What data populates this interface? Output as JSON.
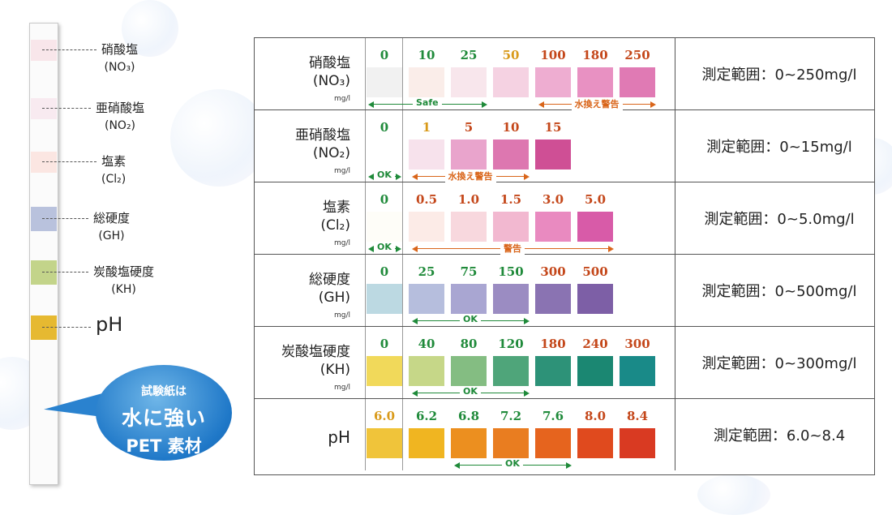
{
  "strip": {
    "pads": [
      {
        "label": "硝酸塩",
        "sub": "(NO₃)",
        "color": "#f8e6ea"
      },
      {
        "label": "亜硝酸塩",
        "sub": "(NO₂)",
        "color": "#f8eaf0"
      },
      {
        "label": "塩素",
        "sub": "(Cl₂)",
        "color": "#fbe6e2"
      },
      {
        "label": "総硬度",
        "sub": "(GH)",
        "color": "#b9c2dd"
      },
      {
        "label": "炭酸塩硬度",
        "sub": "(KH)",
        "color": "#c3d48a"
      },
      {
        "label": "pH",
        "sub": "",
        "color": "#e6b931"
      }
    ]
  },
  "callout": {
    "line1": "試験紙は",
    "line2": "水に強い",
    "line3": "PET 素材",
    "color": "#1f78c8"
  },
  "unit": "mg/l",
  "rows": [
    {
      "name": "硝酸塩",
      "sub": "(NO₃)",
      "unit": "mg/l",
      "range": "測定範囲：0~250mg/l",
      "values": [
        "0",
        "10",
        "25",
        "50",
        "100",
        "180",
        "250"
      ],
      "value_colors": [
        "#1f8a3a",
        "#1f8a3a",
        "#1f8a3a",
        "#d99a1a",
        "#c4471a",
        "#c4471a",
        "#c4471a"
      ],
      "swatches": [
        "#f1f1f1",
        "#faede9",
        "#f8e6ec",
        "#f5d2e2",
        "#eeadd1",
        "#e891c2",
        "#e07ab4"
      ],
      "arrows": [
        {
          "label": "Safe",
          "color": "#1f8a3a",
          "from": 0,
          "to": 3
        },
        {
          "label": "水換え警告",
          "color": "#d9651a",
          "from": 4,
          "to": 7
        }
      ]
    },
    {
      "name": "亜硝酸塩",
      "sub": "(NO₂)",
      "unit": "mg/l",
      "range": "測定範囲：0~15mg/l",
      "values": [
        "0",
        "1",
        "5",
        "10",
        "15"
      ],
      "value_colors": [
        "#1f8a3a",
        "#d99a1a",
        "#c4471a",
        "#c4471a",
        "#c4471a"
      ],
      "swatches": [
        "#ffffff",
        "#f7e2ec",
        "#e9a4cc",
        "#dd77b0",
        "#cf4f95"
      ],
      "arrows": [
        {
          "label": "OK",
          "color": "#1f8a3a",
          "from": 0,
          "to": 1
        },
        {
          "label": "水換え警告",
          "color": "#d9651a",
          "from": 1,
          "to": 4
        }
      ]
    },
    {
      "name": "塩素",
      "sub": "(Cl₂)",
      "unit": "mg/l",
      "range": "測定範囲：0~5.0mg/l",
      "values": [
        "0",
        "0.5",
        "1.0",
        "1.5",
        "3.0",
        "5.0"
      ],
      "value_colors": [
        "#1f8a3a",
        "#c4471a",
        "#c4471a",
        "#c4471a",
        "#c4471a",
        "#c4471a"
      ],
      "swatches": [
        "#fefdf8",
        "#fcebe7",
        "#f8d8de",
        "#f2b8d0",
        "#e98ac0",
        "#d85ba8"
      ],
      "arrows": [
        {
          "label": "OK",
          "color": "#1f8a3a",
          "from": 0,
          "to": 1
        },
        {
          "label": "警告",
          "color": "#d9651a",
          "from": 1,
          "to": 6
        }
      ]
    },
    {
      "name": "総硬度",
      "sub": "(GH)",
      "unit": "mg/l",
      "range": "測定範囲：0~500mg/l",
      "values": [
        "0",
        "25",
        "75",
        "150",
        "300",
        "500"
      ],
      "value_colors": [
        "#1f8a3a",
        "#1f8a3a",
        "#1f8a3a",
        "#1f8a3a",
        "#c4471a",
        "#c4471a"
      ],
      "swatches": [
        "#bcd9e2",
        "#b6bedd",
        "#a9a6d2",
        "#9b8cc2",
        "#8a73b2",
        "#7d5fa6"
      ],
      "arrows": [
        {
          "label": "OK",
          "color": "#1f8a3a",
          "from": 1,
          "to": 4
        }
      ]
    },
    {
      "name": "炭酸塩硬度",
      "sub": "(KH)",
      "unit": "mg/l",
      "range": "測定範囲：0~300mg/l",
      "values": [
        "0",
        "40",
        "80",
        "120",
        "180",
        "240",
        "300"
      ],
      "value_colors": [
        "#1f8a3a",
        "#1f8a3a",
        "#1f8a3a",
        "#1f8a3a",
        "#c4471a",
        "#c4471a",
        "#c4471a"
      ],
      "swatches": [
        "#f1d95a",
        "#c6d788",
        "#84bd82",
        "#4fa57a",
        "#2d9278",
        "#1b8772",
        "#198a88"
      ],
      "arrows": [
        {
          "label": "OK",
          "color": "#1f8a3a",
          "from": 1,
          "to": 4
        }
      ]
    },
    {
      "name": "pH",
      "sub": "",
      "unit": "",
      "range": "測定範囲：6.0~8.4",
      "values": [
        "6.0",
        "6.2",
        "6.8",
        "7.2",
        "7.6",
        "8.0",
        "8.4"
      ],
      "value_colors": [
        "#d99a1a",
        "#1f8a3a",
        "#1f8a3a",
        "#1f8a3a",
        "#1f8a3a",
        "#c4471a",
        "#c4471a"
      ],
      "swatches": [
        "#f0c43a",
        "#f0b521",
        "#ec8f1f",
        "#e97d20",
        "#e6641e",
        "#e04a1e",
        "#d93a22"
      ],
      "arrows": [
        {
          "label": "OK",
          "color": "#1f8a3a",
          "from": 2,
          "to": 5
        }
      ]
    }
  ]
}
